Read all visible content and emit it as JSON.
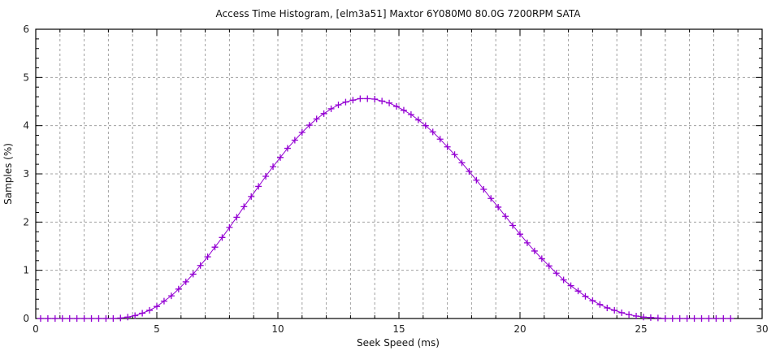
{
  "chart_data": {
    "type": "line",
    "title": "Access Time Histogram, [elm3a51] Maxtor 6Y080M0 80.0G 7200RPM SATA",
    "xlabel": "Seek Speed (ms)",
    "ylabel": "Samples (%)",
    "xlim": [
      0,
      30
    ],
    "ylim": [
      0,
      6
    ],
    "x_ticks": [
      0,
      5,
      10,
      15,
      20,
      25,
      30
    ],
    "y_ticks": [
      0,
      1,
      2,
      3,
      4,
      5,
      6
    ],
    "grid": "on",
    "legend": "none",
    "marker": "plus",
    "color": "#9400d3",
    "series": [
      {
        "x": [
          0.2,
          0.5,
          0.8,
          1.1,
          1.4,
          1.7,
          2.0,
          2.3,
          2.6,
          2.9,
          3.2,
          3.5,
          3.8,
          4.1,
          4.4,
          4.7,
          5.0,
          5.3,
          5.6,
          5.9,
          6.2,
          6.5,
          6.8,
          7.1,
          7.4,
          7.7,
          8.0,
          8.3,
          8.6,
          8.9,
          9.2,
          9.5,
          9.8,
          10.1,
          10.4,
          10.7,
          11.0,
          11.3,
          11.6,
          11.9,
          12.2,
          12.5,
          12.8,
          13.1,
          13.4,
          13.7,
          14.0,
          14.3,
          14.6,
          14.9,
          15.2,
          15.5,
          15.8,
          16.1,
          16.4,
          16.7,
          17.0,
          17.3,
          17.6,
          17.9,
          18.2,
          18.5,
          18.8,
          19.1,
          19.4,
          19.7,
          20.0,
          20.3,
          20.6,
          20.9,
          21.2,
          21.5,
          21.8,
          22.1,
          22.4,
          22.7,
          23.0,
          23.3,
          23.6,
          23.9,
          24.2,
          24.5,
          24.8,
          25.1,
          25.4,
          25.7,
          26.0,
          26.3,
          26.6,
          26.9,
          27.2,
          27.5,
          27.8,
          28.1,
          28.4,
          28.7
        ],
        "y": [
          0,
          0,
          0,
          0,
          0,
          0,
          0,
          0,
          0,
          0,
          0.0,
          0.01,
          0.03,
          0.06,
          0.11,
          0.17,
          0.25,
          0.36,
          0.47,
          0.61,
          0.76,
          0.92,
          1.1,
          1.28,
          1.48,
          1.68,
          1.89,
          2.1,
          2.32,
          2.53,
          2.74,
          2.95,
          3.15,
          3.34,
          3.53,
          3.7,
          3.86,
          4.01,
          4.14,
          4.25,
          4.35,
          4.43,
          4.49,
          4.53,
          4.56,
          4.56,
          4.55,
          4.51,
          4.47,
          4.4,
          4.32,
          4.23,
          4.12,
          4.0,
          3.87,
          3.72,
          3.56,
          3.4,
          3.23,
          3.05,
          2.87,
          2.68,
          2.49,
          2.31,
          2.12,
          1.93,
          1.75,
          1.57,
          1.4,
          1.24,
          1.09,
          0.94,
          0.8,
          0.68,
          0.57,
          0.46,
          0.37,
          0.29,
          0.22,
          0.17,
          0.12,
          0.08,
          0.05,
          0.03,
          0.02,
          0.01,
          0.0,
          0,
          0,
          0,
          0,
          0,
          0,
          0,
          0,
          0
        ]
      }
    ]
  }
}
